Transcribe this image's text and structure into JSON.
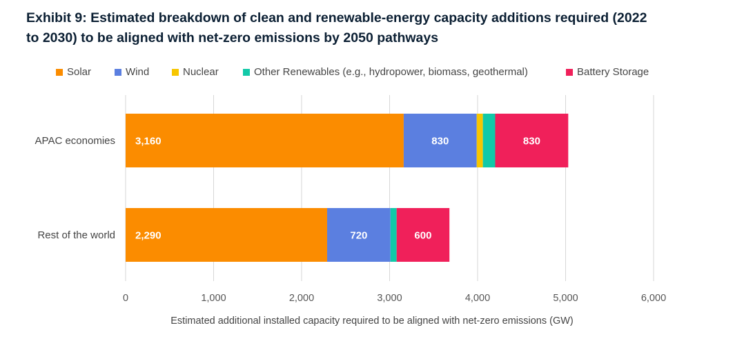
{
  "chart_data": {
    "type": "bar",
    "orientation": "horizontal",
    "stacked": true,
    "title": "Exhibit 9: Estimated breakdown of clean and renewable-energy capacity additions required (2022 to 2030) to be aligned with net-zero emissions by 2050 pathways",
    "title_line1": "Exhibit 9: Estimated breakdown of clean and renewable-energy capacity additions required (2022",
    "title_line2": "to 2030) to be aligned with net-zero emissions by 2050 pathways",
    "xlabel": "Estimated additional installed capacity required to be aligned with net-zero emissions (GW)",
    "ylabel": "",
    "xlim": [
      0,
      6000
    ],
    "xticks": [
      0,
      1000,
      2000,
      3000,
      4000,
      5000,
      6000
    ],
    "xtick_labels": [
      "0",
      "1,000",
      "2,000",
      "3,000",
      "4,000",
      "5,000",
      "6,000"
    ],
    "grid": true,
    "legend_position": "top",
    "categories": [
      "APAC economies",
      "Rest of the world"
    ],
    "series": [
      {
        "name": "Solar",
        "color": "#FB8C00",
        "values": [
          3160,
          2290
        ],
        "labels": [
          "3,160",
          "2,290"
        ]
      },
      {
        "name": "Wind",
        "color": "#5B7FE0",
        "values": [
          830,
          720
        ],
        "labels": [
          "830",
          "720"
        ]
      },
      {
        "name": "Nuclear",
        "color": "#F7C600",
        "values": [
          70,
          0
        ],
        "labels": [
          "",
          ""
        ]
      },
      {
        "name": "Other Renewables (e.g., hydropower, biomass, geothermal)",
        "color": "#12C9A8",
        "values": [
          140,
          70
        ],
        "labels": [
          "",
          ""
        ]
      },
      {
        "name": "Battery Storage",
        "color": "#F0205A",
        "values": [
          830,
          600
        ],
        "labels": [
          "830",
          "600"
        ]
      }
    ]
  }
}
